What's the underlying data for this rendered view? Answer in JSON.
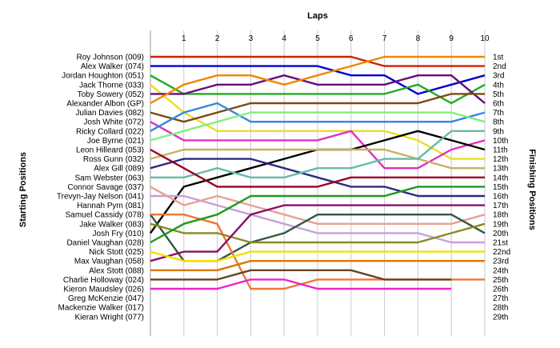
{
  "chart_data": {
    "type": "line",
    "title": "Laps",
    "ylabel_left": "Starting Positions",
    "ylabel_right": "Finishing Positions",
    "x": [
      0,
      1,
      2,
      3,
      4,
      5,
      6,
      7,
      8,
      9,
      10
    ],
    "x_tick_labels": [
      "1",
      "2",
      "3",
      "4",
      "5",
      "6",
      "7",
      "8",
      "9",
      "10"
    ],
    "y_range": [
      1,
      29
    ],
    "grid": "vertical",
    "starting_positions": [
      "Roy Johnson (009)",
      "Alex Walker (074)",
      "Jordan Houghton (051)",
      "Jack Thorne (033)",
      "Toby Sowery (052)",
      "Alexander Albon (GP)",
      "Julian Davies (082)",
      "Josh White (072)",
      "Ricky Collard (022)",
      "Joe Byrne (021)",
      "Leon Hilleard (053)",
      "Ross Gunn (032)",
      "Alex Gill (089)",
      "Sam Webster (063)",
      "Connor Savage (037)",
      "Trevyn-Jay Nelson (041)",
      "Hannah Pym (081)",
      "Samuel Cassidy (078)",
      "Jake Walker (083)",
      "Josh Fry (010)",
      "Daniel Vaughan (028)",
      "Nick Stott (025)",
      "Max Vaughan (058)",
      "Alex Stott (088)",
      "Charlie Holloway (024)",
      "Kieron Maudsley (026)",
      "Greg McKenzie (047)",
      "Mackenzie Walker (017)",
      "Kieran Wright (077)"
    ],
    "finishing_positions": [
      "1st",
      "2nd",
      "3rd",
      "4th",
      "5th",
      "6th",
      "7th",
      "8th",
      "9th",
      "10th",
      "11th",
      "12th",
      "13th",
      "14th",
      "15th",
      "16th",
      "17th",
      "18th",
      "19th",
      "20th",
      "21st",
      "22nd",
      "23rd",
      "24th",
      "25th",
      "26th",
      "27th",
      "28th",
      "29th"
    ],
    "series": [
      {
        "color": "#cc2200",
        "values": [
          1,
          1,
          1,
          1,
          1,
          1,
          1,
          2,
          2,
          2,
          2
        ]
      },
      {
        "color": "#0000cc",
        "values": [
          2,
          2,
          2,
          2,
          2,
          2,
          3,
          3,
          5,
          4,
          3
        ]
      },
      {
        "color": "#22aa22",
        "values": [
          3,
          5,
          5,
          5,
          5,
          5,
          5,
          5,
          4,
          6,
          4
        ]
      },
      {
        "color": "#e8e020",
        "values": [
          4,
          7,
          9,
          9,
          9,
          9,
          9,
          9,
          10,
          12,
          12
        ]
      },
      {
        "color": "#6a0a80",
        "values": [
          5,
          5,
          4,
          4,
          3,
          4,
          4,
          4,
          3,
          3,
          6
        ]
      },
      {
        "color": "#ee8800",
        "values": [
          6,
          4,
          3,
          3,
          4,
          3,
          2,
          1,
          1,
          1,
          1
        ]
      },
      {
        "color": "#7a4a10",
        "values": [
          7,
          8,
          7,
          6,
          6,
          6,
          6,
          6,
          6,
          5,
          5
        ]
      },
      {
        "color": "#e030c0",
        "values": [
          8,
          10,
          10,
          10,
          10,
          10,
          9,
          13,
          13,
          11,
          10
        ]
      },
      {
        "color": "#3388dd",
        "values": [
          9,
          7,
          6,
          8,
          8,
          8,
          8,
          8,
          8,
          8,
          7
        ]
      },
      {
        "color": "#80f080",
        "values": [
          10,
          9,
          8,
          7,
          7,
          7,
          7,
          7,
          7,
          7,
          8
        ]
      },
      {
        "color": "#000000",
        "values": [
          20,
          15,
          14,
          13,
          12,
          11,
          11,
          10,
          9,
          10,
          11
        ]
      },
      {
        "color": "#c8b060",
        "values": [
          12,
          11,
          11,
          11,
          11,
          11,
          11,
          11,
          12,
          13,
          13
        ]
      },
      {
        "color": "#2a2a80",
        "values": [
          13,
          12,
          12,
          12,
          13,
          14,
          15,
          15,
          16,
          16,
          16
        ]
      },
      {
        "color": "#66bbaa",
        "values": [
          14,
          14,
          13,
          14,
          14,
          13,
          13,
          12,
          12,
          9,
          9
        ]
      },
      {
        "color": "#990022",
        "values": [
          11,
          13,
          15,
          15,
          15,
          15,
          14,
          14,
          14,
          14,
          14
        ]
      },
      {
        "color": "#c8a0d8",
        "values": [
          16,
          16,
          17,
          18,
          19,
          20,
          20,
          20,
          20,
          21,
          21
        ]
      },
      {
        "color": "#eaa090",
        "values": [
          15,
          17,
          16,
          17,
          18,
          19,
          19,
          19,
          19,
          19,
          18
        ]
      },
      {
        "color": "#335544",
        "values": [
          18,
          23,
          23,
          21,
          20,
          18,
          18,
          18,
          18,
          18,
          20
        ]
      },
      {
        "color": "#ee7733",
        "values": [
          18,
          18,
          19,
          26,
          26,
          25,
          25,
          25,
          25,
          25,
          25
        ]
      },
      {
        "color": "#8a8a20",
        "values": [
          19,
          20,
          20,
          21,
          21,
          21,
          21,
          21,
          21,
          20,
          19
        ]
      },
      {
        "color": "#1a9a1a",
        "values": [
          21,
          19,
          18,
          16,
          16,
          16,
          16,
          16,
          15,
          15,
          15
        ]
      },
      {
        "color": "#881166",
        "values": [
          23,
          22,
          22,
          18,
          17,
          17,
          17,
          17,
          17,
          17,
          17
        ]
      },
      {
        "color": "#f0e000",
        "values": [
          22,
          23,
          23,
          22,
          22,
          22,
          22,
          22,
          22,
          22,
          22
        ]
      },
      {
        "color": "#dd7700",
        "values": [
          24,
          24,
          24,
          23,
          23,
          23,
          23,
          23,
          23,
          23,
          23
        ]
      },
      {
        "color": "#664422",
        "values": [
          25,
          25,
          25,
          24,
          24,
          24,
          24,
          25,
          25,
          25,
          null
        ]
      },
      {
        "color": "#ee22cc",
        "values": [
          26,
          26,
          26,
          25,
          25,
          26,
          26,
          26,
          26,
          26,
          null
        ]
      }
    ]
  }
}
